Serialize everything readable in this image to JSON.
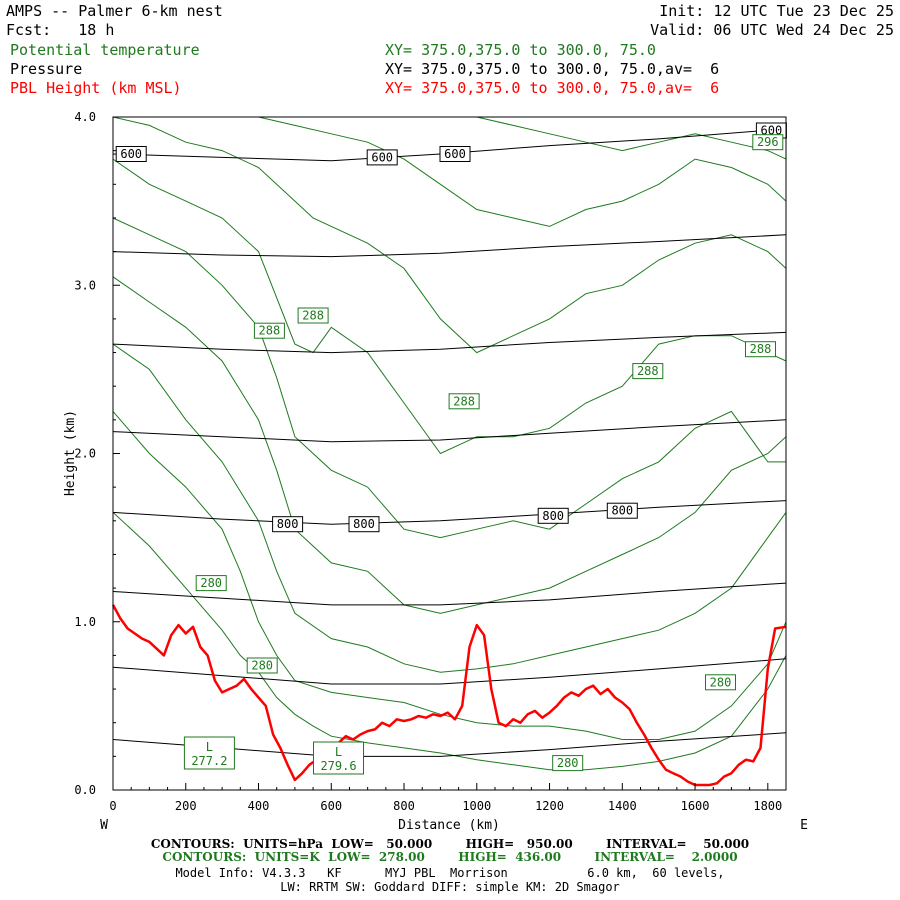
{
  "header": {
    "title": "AMPS -- Palmer 6-km nest",
    "fcst": "Fcst:   18 h",
    "init": "Init: 12 UTC Tue 23 Dec 25",
    "valid": "Valid: 06 UTC Wed 24 Dec 25",
    "field_theta": "Potential temperature",
    "field_pressure": "Pressure",
    "field_pbl": "PBL Height (km MSL)",
    "xy_theta": "XY= 375.0,375.0 to 300.0, 75.0",
    "xy_pressure": "XY= 375.0,375.0 to 300.0, 75.0,av=  6",
    "xy_pbl": "XY= 375.0,375.0 to 300.0, 75.0,av=  6"
  },
  "colors": {
    "black": "#000000",
    "green": "#1f7a1f",
    "red": "#ff0000"
  },
  "footer": {
    "line1": "CONTOURS:  UNITS=hPa  LOW=   50.000        HIGH=   950.00        INTERVAL=    50.000",
    "line2": "CONTOURS:  UNITS=K  LOW=  278.00        HIGH=  436.00        INTERVAL=    2.0000",
    "line3": "Model Info: V4.3.3   KF      MYJ PBL  Morrison           6.0 km,  60 levels,",
    "line4": "LW: RRTM SW: Goddard DIFF: simple KM: 2D Smagor"
  },
  "chart_data": {
    "type": "line",
    "xlabel": "Distance (km)",
    "ylabel": "Height (km)",
    "xlim": [
      0,
      1850
    ],
    "ylim": [
      0,
      4.0
    ],
    "x_ticks": [
      0,
      200,
      400,
      600,
      800,
      1000,
      1200,
      1400,
      1600,
      1800
    ],
    "y_ticks": [
      0,
      1.0,
      2.0,
      3.0,
      4.0
    ],
    "y_tick_labels": [
      "0.0",
      "1.0",
      "2.0",
      "3.0",
      "4.0"
    ],
    "x_end_labels": {
      "left": "W",
      "right": "E"
    },
    "pressure_contours": [
      {
        "level": 600,
        "x": [
          0,
          300,
          600,
          900,
          1200,
          1500,
          1850
        ],
        "y": [
          3.78,
          3.76,
          3.74,
          3.78,
          3.83,
          3.87,
          3.93
        ]
      },
      {
        "level": 650,
        "x": [
          0,
          300,
          600,
          900,
          1200,
          1500,
          1850
        ],
        "y": [
          3.2,
          3.18,
          3.17,
          3.19,
          3.23,
          3.26,
          3.3
        ]
      },
      {
        "level": 700,
        "x": [
          0,
          300,
          600,
          900,
          1200,
          1500,
          1850
        ],
        "y": [
          2.65,
          2.62,
          2.6,
          2.62,
          2.66,
          2.69,
          2.72
        ]
      },
      {
        "level": 750,
        "x": [
          0,
          300,
          600,
          900,
          1200,
          1500,
          1850
        ],
        "y": [
          2.13,
          2.1,
          2.07,
          2.08,
          2.12,
          2.16,
          2.2
        ]
      },
      {
        "level": 800,
        "x": [
          0,
          300,
          600,
          900,
          1200,
          1500,
          1850
        ],
        "y": [
          1.65,
          1.61,
          1.58,
          1.6,
          1.64,
          1.68,
          1.72
        ]
      },
      {
        "level": 850,
        "x": [
          0,
          300,
          600,
          900,
          1200,
          1500,
          1850
        ],
        "y": [
          1.18,
          1.14,
          1.1,
          1.1,
          1.13,
          1.18,
          1.23
        ]
      },
      {
        "level": 900,
        "x": [
          0,
          300,
          600,
          900,
          1200,
          1500,
          1850
        ],
        "y": [
          0.73,
          0.68,
          0.63,
          0.63,
          0.67,
          0.72,
          0.78
        ]
      },
      {
        "level": 950,
        "x": [
          0,
          300,
          600,
          900,
          1200,
          1500,
          1850
        ],
        "y": [
          0.3,
          0.25,
          0.2,
          0.2,
          0.24,
          0.29,
          0.34
        ]
      }
    ],
    "pressure_labels": [
      {
        "text": "600",
        "x": 50,
        "y": 3.78
      },
      {
        "text": "600",
        "x": 740,
        "y": 3.76
      },
      {
        "text": "600",
        "x": 940,
        "y": 3.78
      },
      {
        "text": "600",
        "x": 1810,
        "y": 3.92
      },
      {
        "text": "800",
        "x": 480,
        "y": 1.58
      },
      {
        "text": "800",
        "x": 690,
        "y": 1.58
      },
      {
        "text": "800",
        "x": 1210,
        "y": 1.63
      },
      {
        "text": "800",
        "x": 1400,
        "y": 1.66
      }
    ],
    "theta_contours": [
      {
        "x": [
          0,
          100,
          200,
          300,
          350,
          400,
          450,
          500,
          550,
          600,
          700,
          800,
          900,
          1000,
          1100,
          1200,
          1300,
          1400,
          1500,
          1600,
          1700,
          1800,
          1850
        ],
        "y": [
          1.65,
          1.45,
          1.2,
          0.95,
          0.8,
          0.7,
          0.55,
          0.45,
          0.38,
          0.32,
          0.28,
          0.25,
          0.22,
          0.18,
          0.15,
          0.12,
          0.12,
          0.14,
          0.17,
          0.22,
          0.32,
          0.6,
          0.8
        ]
      },
      {
        "x": [
          0,
          100,
          200,
          300,
          350,
          400,
          450,
          500,
          600,
          700,
          800,
          900,
          1000,
          1100,
          1200,
          1300,
          1400,
          1500,
          1600,
          1700,
          1800,
          1850
        ],
        "y": [
          2.25,
          2.0,
          1.8,
          1.55,
          1.3,
          1.0,
          0.8,
          0.65,
          0.58,
          0.55,
          0.52,
          0.45,
          0.4,
          0.38,
          0.38,
          0.35,
          0.3,
          0.3,
          0.35,
          0.5,
          0.75,
          1.0
        ]
      },
      {
        "x": [
          0,
          100,
          200,
          300,
          400,
          450,
          500,
          600,
          700,
          800,
          900,
          1000,
          1100,
          1200,
          1300,
          1400,
          1500,
          1600,
          1700,
          1800,
          1850
        ],
        "y": [
          2.65,
          2.5,
          2.2,
          1.95,
          1.6,
          1.3,
          1.05,
          0.9,
          0.85,
          0.75,
          0.7,
          0.72,
          0.75,
          0.8,
          0.85,
          0.9,
          0.95,
          1.05,
          1.2,
          1.5,
          1.65
        ]
      },
      {
        "x": [
          0,
          100,
          200,
          300,
          400,
          450,
          500,
          600,
          700,
          800,
          900,
          1000,
          1100,
          1200,
          1300,
          1400,
          1500,
          1600,
          1700,
          1800,
          1850
        ],
        "y": [
          3.05,
          2.9,
          2.75,
          2.55,
          2.2,
          1.9,
          1.55,
          1.35,
          1.3,
          1.1,
          1.05,
          1.1,
          1.15,
          1.2,
          1.3,
          1.4,
          1.5,
          1.65,
          1.9,
          2.0,
          2.1
        ]
      },
      {
        "x": [
          0,
          100,
          200,
          300,
          400,
          450,
          500,
          600,
          700,
          800,
          900,
          1000,
          1100,
          1200,
          1300,
          1400,
          1500,
          1600,
          1700,
          1800,
          1850
        ],
        "y": [
          3.4,
          3.3,
          3.2,
          3.0,
          2.75,
          2.45,
          2.1,
          1.9,
          1.8,
          1.55,
          1.5,
          1.55,
          1.6,
          1.55,
          1.7,
          1.85,
          1.95,
          2.15,
          2.25,
          1.95,
          1.95
        ]
      },
      {
        "x": [
          0,
          100,
          200,
          300,
          400,
          500,
          550,
          600,
          700,
          800,
          900,
          1000,
          1100,
          1200,
          1300,
          1400,
          1500,
          1600,
          1700,
          1800,
          1850
        ],
        "y": [
          3.75,
          3.6,
          3.5,
          3.4,
          3.2,
          2.65,
          2.6,
          2.75,
          2.6,
          2.3,
          2.0,
          2.1,
          2.1,
          2.15,
          2.3,
          2.4,
          2.65,
          2.7,
          2.7,
          2.6,
          2.55
        ]
      },
      {
        "x": [
          0,
          100,
          200,
          300,
          400,
          500,
          550,
          600,
          700,
          800,
          900,
          1000,
          1100,
          1200,
          1300,
          1400,
          1500,
          1600,
          1700,
          1800,
          1850
        ],
        "y": [
          4.0,
          3.95,
          3.85,
          3.8,
          3.7,
          3.5,
          3.4,
          3.35,
          3.25,
          3.1,
          2.8,
          2.6,
          2.7,
          2.8,
          2.95,
          3.0,
          3.15,
          3.25,
          3.3,
          3.2,
          3.1
        ]
      },
      {
        "x": [
          400,
          500,
          600,
          700,
          800,
          900,
          1000,
          1100,
          1200,
          1300,
          1400,
          1500,
          1600,
          1700,
          1800,
          1850
        ],
        "y": [
          4.0,
          3.95,
          3.9,
          3.85,
          3.75,
          3.6,
          3.45,
          3.4,
          3.35,
          3.45,
          3.5,
          3.6,
          3.75,
          3.7,
          3.6,
          3.5
        ]
      },
      {
        "x": [
          1000,
          1100,
          1200,
          1300,
          1400,
          1500,
          1600,
          1700,
          1800,
          1850
        ],
        "y": [
          4.0,
          3.95,
          3.9,
          3.85,
          3.8,
          3.85,
          3.9,
          3.85,
          3.8,
          3.75
        ]
      }
    ],
    "theta_labels": [
      {
        "text": "296",
        "x": 1800,
        "y": 3.85
      },
      {
        "text": "288",
        "x": 430,
        "y": 2.73
      },
      {
        "text": "288",
        "x": 550,
        "y": 2.82
      },
      {
        "text": "288",
        "x": 965,
        "y": 2.31
      },
      {
        "text": "288",
        "x": 1470,
        "y": 2.49
      },
      {
        "text": "288",
        "x": 1780,
        "y": 2.62
      },
      {
        "text": "280",
        "x": 270,
        "y": 1.23
      },
      {
        "text": "280",
        "x": 410,
        "y": 0.74
      },
      {
        "text": "280",
        "x": 1250,
        "y": 0.16
      },
      {
        "text": "280",
        "x": 1670,
        "y": 0.64
      }
    ],
    "theta_extrema": [
      {
        "kind": "L",
        "value": "277.2",
        "x": 265,
        "y": 0.22
      },
      {
        "kind": "L",
        "value": "279.6",
        "x": 620,
        "y": 0.19
      }
    ],
    "pbl_height": {
      "x": [
        0,
        20,
        40,
        60,
        80,
        100,
        120,
        140,
        160,
        180,
        200,
        220,
        240,
        260,
        280,
        300,
        320,
        340,
        360,
        380,
        400,
        420,
        440,
        460,
        480,
        500,
        520,
        540,
        560,
        580,
        600,
        620,
        640,
        660,
        680,
        700,
        720,
        740,
        760,
        780,
        800,
        820,
        840,
        860,
        880,
        900,
        920,
        940,
        960,
        980,
        1000,
        1020,
        1040,
        1060,
        1080,
        1100,
        1120,
        1140,
        1160,
        1180,
        1200,
        1220,
        1240,
        1260,
        1280,
        1300,
        1320,
        1340,
        1360,
        1380,
        1400,
        1420,
        1440,
        1460,
        1480,
        1500,
        1520,
        1540,
        1560,
        1580,
        1600,
        1620,
        1640,
        1660,
        1680,
        1700,
        1720,
        1740,
        1760,
        1780,
        1800,
        1820,
        1850
      ],
      "y": [
        1.1,
        1.02,
        0.96,
        0.93,
        0.9,
        0.88,
        0.84,
        0.8,
        0.92,
        0.98,
        0.93,
        0.97,
        0.85,
        0.8,
        0.65,
        0.58,
        0.6,
        0.62,
        0.66,
        0.6,
        0.55,
        0.5,
        0.33,
        0.25,
        0.15,
        0.06,
        0.1,
        0.15,
        0.18,
        0.2,
        0.25,
        0.28,
        0.32,
        0.3,
        0.33,
        0.35,
        0.36,
        0.4,
        0.38,
        0.42,
        0.41,
        0.42,
        0.44,
        0.43,
        0.45,
        0.44,
        0.46,
        0.42,
        0.5,
        0.85,
        0.98,
        0.92,
        0.6,
        0.4,
        0.38,
        0.42,
        0.4,
        0.45,
        0.47,
        0.43,
        0.46,
        0.5,
        0.55,
        0.58,
        0.56,
        0.6,
        0.62,
        0.57,
        0.6,
        0.55,
        0.52,
        0.48,
        0.4,
        0.33,
        0.25,
        0.18,
        0.12,
        0.1,
        0.08,
        0.05,
        0.03,
        0.03,
        0.03,
        0.04,
        0.08,
        0.1,
        0.15,
        0.18,
        0.17,
        0.25,
        0.72,
        0.96,
        0.97
      ]
    }
  }
}
